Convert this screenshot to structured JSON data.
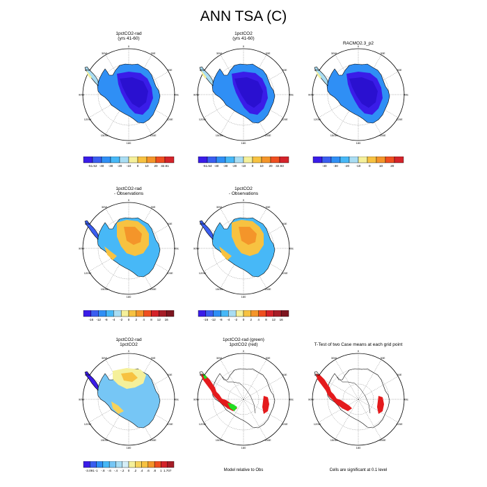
{
  "figure": {
    "title": "ANN TSA (C)"
  },
  "panels": [
    {
      "id": "p1",
      "title_l1": "1pctCO2-rad",
      "title_l2": "(yrs 41-60)",
      "map": "full",
      "palette": "abs",
      "colorbar": {
        "labels": [
          "-51.52",
          "-40",
          "-30",
          "-20",
          "-10",
          "0",
          "10",
          "20",
          "32.81"
        ]
      }
    },
    {
      "id": "p2",
      "title_l1": "1pctCO2",
      "title_l2": "(yrs 41-60)",
      "map": "full",
      "palette": "abs",
      "colorbar": {
        "labels": [
          "-51.54",
          "-40",
          "-30",
          "-20",
          "-10",
          "0",
          "10",
          "20",
          "32.93"
        ]
      }
    },
    {
      "id": "p3",
      "title_l1": "RACMO2.3_p2",
      "title_l2": "",
      "map": "full",
      "palette": "abs",
      "colorbar": {
        "labels": [
          "-40",
          "-30",
          "-20",
          "-10",
          "0",
          "10",
          "20"
        ]
      }
    },
    {
      "id": "p4",
      "title_l1": "1pctCO2-rad",
      "title_l2": "- Observations",
      "map": "full",
      "palette": "bias",
      "colorbar": {
        "labels": [
          "-16",
          "-12",
          "-8",
          "-4",
          "-2",
          "0",
          "2",
          "4",
          "8",
          "12",
          "16"
        ]
      }
    },
    {
      "id": "p5",
      "title_l1": "1pctCO2",
      "title_l2": "- Observations",
      "map": "full",
      "palette": "bias",
      "colorbar": {
        "labels": [
          "-16",
          "-12",
          "-8",
          "-4",
          "-2",
          "0",
          "2",
          "4",
          "8",
          "12",
          "16"
        ]
      }
    },
    {
      "id": "p6",
      "title_l1": "1pctCO2-rad",
      "title_l2": "1pctCO2",
      "map": "full",
      "palette": "diff",
      "colorbar": {
        "labels": [
          "-3.091",
          "-1",
          "-.8",
          "-.6",
          "-.4",
          "-.2",
          "0",
          ".2",
          ".4",
          ".6",
          ".8",
          "1",
          "1.707"
        ]
      }
    },
    {
      "id": "p7",
      "title_l1": "1pctCO2-rad (green)",
      "title_l2": "1pctCO2 (red)",
      "map": "outline",
      "palette": "none",
      "caption": "Model relative to Obs"
    },
    {
      "id": "p8",
      "title_l1": "T-Test of two Case means at each grid point",
      "title_l2": "",
      "map": "outline",
      "palette": "none",
      "caption": "Cells are significant at 0.1 level"
    }
  ],
  "polar_labels": {
    "top": "0",
    "left": "90W",
    "right": "90E",
    "bottom": "180",
    "upper_left": "30W",
    "upper_right": "30E",
    "mid_left_up": "60W",
    "mid_right_up": "60E",
    "mid_left_down": "120W",
    "mid_right_down": "120E",
    "lower_left": "150W",
    "lower_right": "150E"
  },
  "colors": {
    "abs": [
      "#3a1ce8",
      "#3a5ef0",
      "#2f8ff5",
      "#47b8f7",
      "#a9ddf3",
      "#f5f09a",
      "#f7c241",
      "#f4952a",
      "#ef4f20",
      "#d4232a"
    ],
    "bias": [
      "#3a1ce8",
      "#3a5ef0",
      "#2f8ff5",
      "#47b8f7",
      "#a9ddf3",
      "#f5f09a",
      "#f7c241",
      "#f4952a",
      "#ef4f20",
      "#d4232a",
      "#a61d27",
      "#7d1620"
    ],
    "diff": [
      "#3a1ce8",
      "#3a5ef0",
      "#2f8ff5",
      "#47b8f7",
      "#76c6f5",
      "#a9ddf3",
      "#d5eef7",
      "#f5f09a",
      "#f7d35b",
      "#f7c241",
      "#f4952a",
      "#ef4f20",
      "#d4232a",
      "#a61d27"
    ],
    "sig_red": "#e41a1c",
    "sig_green": "#22dd22"
  },
  "chart_data": [
    {
      "type": "heatmap",
      "title": "1pctCO2-rad (yrs 41-60)",
      "range": [
        -51.52,
        32.81
      ]
    },
    {
      "type": "heatmap",
      "title": "1pctCO2 (yrs 41-60)",
      "range": [
        -51.54,
        32.93
      ]
    },
    {
      "type": "heatmap",
      "title": "RACMO2.3_p2",
      "levels": [
        -40,
        -30,
        -20,
        -10,
        0,
        10,
        20
      ]
    },
    {
      "type": "heatmap",
      "title": "1pctCO2-rad - Observations",
      "levels": [
        -16,
        -12,
        -8,
        -4,
        -2,
        0,
        2,
        4,
        8,
        12,
        16
      ]
    },
    {
      "type": "heatmap",
      "title": "1pctCO2 - Observations",
      "levels": [
        -16,
        -12,
        -8,
        -4,
        -2,
        0,
        2,
        4,
        8,
        12,
        16
      ]
    },
    {
      "type": "heatmap",
      "title": "1pctCO2-rad 1pctCO2",
      "range": [
        -3.091,
        1.707
      ]
    },
    {
      "type": "heatmap",
      "title": "1pctCO2-rad (green) 1pctCO2 (red)"
    },
    {
      "type": "heatmap",
      "title": "T-Test of two Case means at each grid point"
    }
  ]
}
